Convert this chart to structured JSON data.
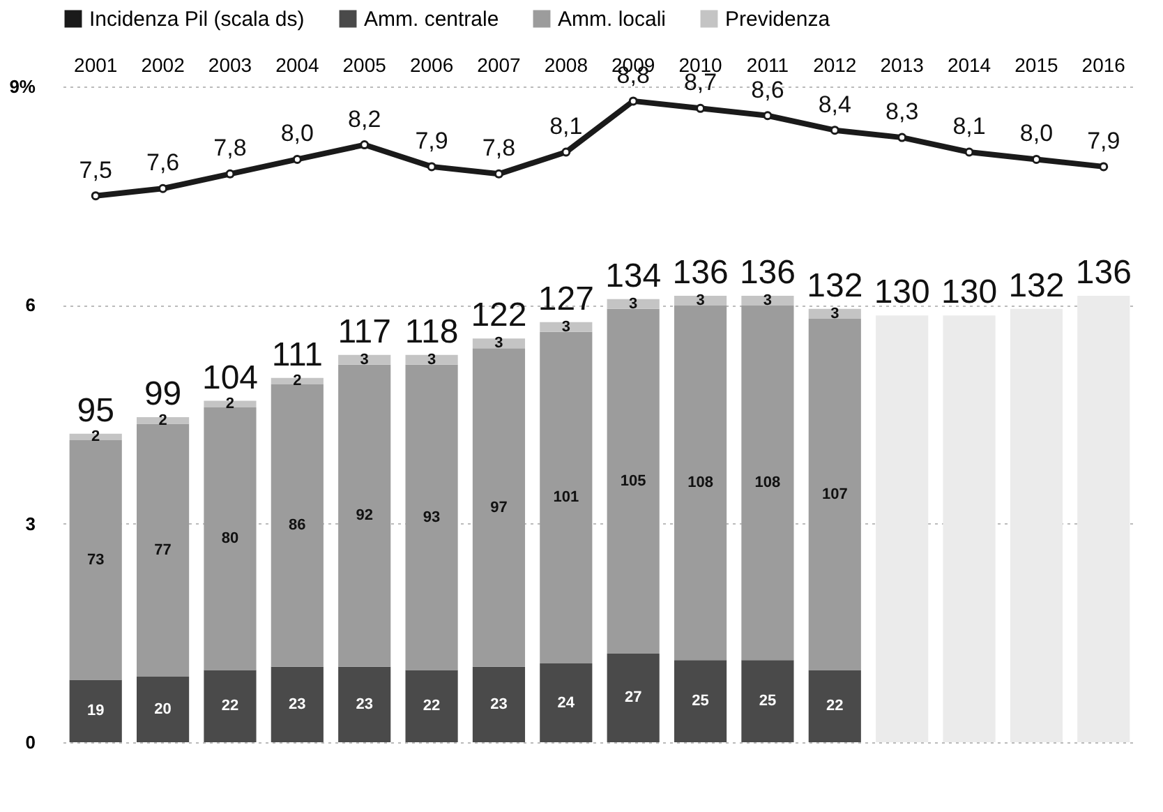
{
  "chart_data": {
    "type": "bar",
    "stacked": true,
    "categories": [
      "2001",
      "2002",
      "2003",
      "2004",
      "2005",
      "2006",
      "2007",
      "2008",
      "2009",
      "2010",
      "2011",
      "2012",
      "2013",
      "2014",
      "2015",
      "2016"
    ],
    "series": [
      {
        "name": "Amm. centrale",
        "axis": "y2",
        "color": "#4a4a4a",
        "values": [
          19,
          20,
          22,
          23,
          23,
          22,
          23,
          24,
          27,
          25,
          25,
          22,
          null,
          null,
          null,
          null
        ],
        "value_labels": [
          "19",
          "20",
          "22",
          "23",
          "23",
          "22",
          "23",
          "24",
          "27",
          "25",
          "25",
          "22",
          null,
          null,
          null,
          null
        ]
      },
      {
        "name": "Amm. locali",
        "axis": "y2",
        "color": "#9c9c9c",
        "values": [
          73,
          77,
          80,
          86,
          92,
          93,
          97,
          101,
          105,
          108,
          108,
          107,
          null,
          null,
          null,
          null
        ],
        "value_labels": [
          "73",
          "77",
          "80",
          "86",
          "92",
          "93",
          "97",
          "101",
          "105",
          "108",
          "108",
          "107",
          null,
          null,
          null,
          null
        ]
      },
      {
        "name": "Previdenza",
        "axis": "y2",
        "color": "#c4c4c4",
        "values": [
          2,
          2,
          2,
          2,
          3,
          3,
          3,
          3,
          3,
          3,
          3,
          3,
          null,
          null,
          null,
          null
        ],
        "value_labels": [
          "2",
          "2",
          "2",
          "2",
          "3",
          "3",
          "3",
          "3",
          "3",
          "3",
          "3",
          "3",
          null,
          null,
          null,
          null
        ]
      },
      {
        "axis": "y2",
        "color": "#ebebeb",
        "values": [
          null,
          null,
          null,
          null,
          null,
          null,
          null,
          null,
          null,
          null,
          null,
          null,
          130,
          130,
          132,
          136
        ]
      },
      {
        "name": "Incidenza Pil (scala ds)",
        "type": "line",
        "axis": "y",
        "color": "#1a1a1a",
        "values": [
          7.5,
          7.6,
          7.8,
          8.0,
          8.2,
          7.9,
          7.8,
          8.1,
          8.8,
          8.7,
          8.6,
          8.4,
          8.3,
          8.1,
          8.0,
          7.9
        ],
        "value_labels": [
          "7,5",
          "7,6",
          "7,8",
          "8,0",
          "8,2",
          "7,9",
          "7,8",
          "8,1",
          "8,8",
          "8,7",
          "8,6",
          "8,4",
          "8,3",
          "8,1",
          "8,0",
          "7,9"
        ]
      }
    ],
    "totals": [
      "95",
      "99",
      "104",
      "111",
      "117",
      "118",
      "122",
      "127",
      "134",
      "136",
      "136",
      "132",
      "130",
      "130",
      "132",
      "136"
    ],
    "ylim": [
      0,
      9
    ],
    "yticks": [
      0,
      3,
      6,
      {
        "value": 9,
        "label": "9%"
      }
    ],
    "grid": "y",
    "legend": "top left",
    "marker": "circle",
    "line_style": "solid"
  }
}
